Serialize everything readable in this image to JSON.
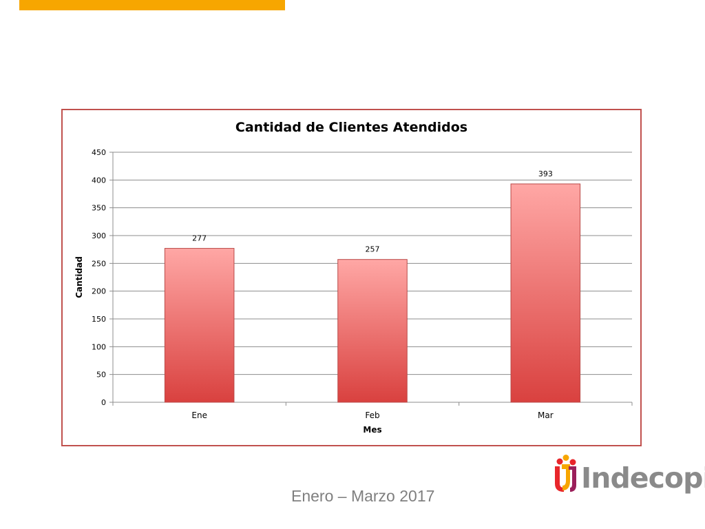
{
  "colors": {
    "accent": "#f7a600",
    "frame": "#c0504d",
    "bar_top": "#ffa7a5",
    "bar_bottom": "#d9413f"
  },
  "chart_data": {
    "type": "bar",
    "title": "Cantidad de Clientes Atendidos",
    "xlabel": "Mes",
    "ylabel": "Cantidad",
    "categories": [
      "Ene",
      "Feb",
      "Mar"
    ],
    "values": [
      277,
      257,
      393
    ],
    "ylim": [
      0,
      450
    ],
    "yticks": [
      0,
      50,
      100,
      150,
      200,
      250,
      300,
      350,
      400,
      450
    ],
    "grid": true,
    "data_labels": true
  },
  "footer": {
    "period": "Enero – Marzo 2017"
  },
  "brand": {
    "name": "Indecopi"
  }
}
